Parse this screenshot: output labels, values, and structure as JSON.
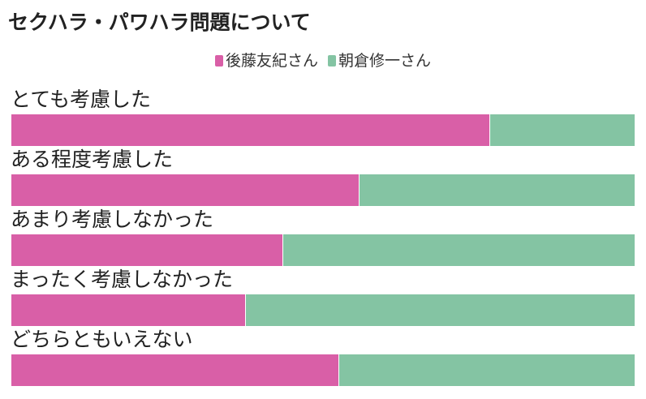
{
  "title": "セクハラ・パワハラ問題について",
  "colors": {
    "series_a": "#d95fa7",
    "series_b": "#84c4a3"
  },
  "chart_data": {
    "type": "bar",
    "stacked": true,
    "normalized": true,
    "orientation": "horizontal",
    "categories": [
      "とても考慮した",
      "ある程度考慮した",
      "あまり考慮しなかった",
      "まったく考慮しなかった",
      "どちらともいえない"
    ],
    "series": [
      {
        "name": "後藤友紀さん",
        "values": [
          76.7,
          55.7,
          43.5,
          37.5,
          52.5
        ]
      },
      {
        "name": "朝倉修一さん",
        "values": [
          23.3,
          44.3,
          56.5,
          62.5,
          47.5
        ]
      }
    ],
    "legend_position": "top-center",
    "grid": false
  }
}
